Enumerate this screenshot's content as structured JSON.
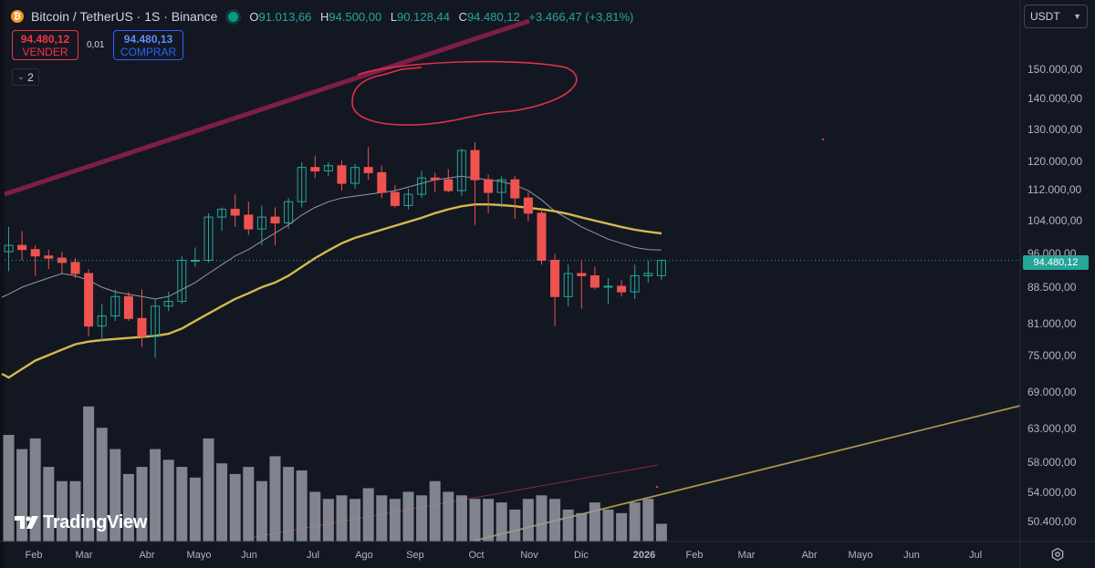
{
  "legend": {
    "symbol": "Bitcoin / TetherUS · 1S · Binance",
    "open_label": "O",
    "open": "91.013,66",
    "high_label": "H",
    "high": "94.500,00",
    "low_label": "L",
    "low": "90.128,44",
    "close_label": "C",
    "close": "94.480,12",
    "change": "+3.466,47 (+3,81%)"
  },
  "trade": {
    "sell_price": "94.480,12",
    "sell_label": "VENDER",
    "spread": "0,01",
    "buy_price": "94.480,13",
    "buy_label": "COMPRAR"
  },
  "indicators_toggle": "2",
  "currency": "USDT",
  "current_price_tag": "94.480,12",
  "logo_text": "TradingView",
  "colors": {
    "background": "#131722",
    "up": "#26a69a",
    "down": "#ef5350",
    "ma_slow": "#d4b94e",
    "ma_fast": "#9598a1",
    "volume": "#9598a1"
  },
  "chart_data": {
    "type": "candlestick",
    "interval": "1 week",
    "y_scale": "log",
    "y_ticks": [
      "150.000,00",
      "140.000,00",
      "130.000,00",
      "120.000,00",
      "112.000,00",
      "104.000,00",
      "96.000,00",
      "88.500,00",
      "81.000,00",
      "75.000,00",
      "69.000,00",
      "63.000,00",
      "58.000,00",
      "54.000,00",
      "50.400,00"
    ],
    "x_ticks": [
      "Feb",
      "Mar",
      "Abr",
      "Mayo",
      "Jun",
      "Jul",
      "Ago",
      "Sep",
      "Oct",
      "Nov",
      "Dic",
      "2026",
      "Feb",
      "Mar",
      "Abr",
      "Mayo",
      "Jun",
      "Jul"
    ],
    "candles": [
      {
        "o": 96500,
        "h": 102500,
        "l": 92000,
        "c": 98000
      },
      {
        "o": 98000,
        "h": 101500,
        "l": 94500,
        "c": 97000
      },
      {
        "o": 97000,
        "h": 98000,
        "l": 91000,
        "c": 95500
      },
      {
        "o": 95500,
        "h": 97000,
        "l": 92500,
        "c": 95000
      },
      {
        "o": 95000,
        "h": 96500,
        "l": 91500,
        "c": 94000
      },
      {
        "o": 94000,
        "h": 95000,
        "l": 90500,
        "c": 91500
      },
      {
        "o": 91500,
        "h": 92500,
        "l": 78500,
        "c": 80500
      },
      {
        "o": 80500,
        "h": 85000,
        "l": 77500,
        "c": 82500
      },
      {
        "o": 82500,
        "h": 88000,
        "l": 81500,
        "c": 86500
      },
      {
        "o": 86500,
        "h": 87500,
        "l": 81500,
        "c": 82000
      },
      {
        "o": 82000,
        "h": 88000,
        "l": 76500,
        "c": 78500
      },
      {
        "o": 78500,
        "h": 86000,
        "l": 74500,
        "c": 84500
      },
      {
        "o": 84500,
        "h": 87500,
        "l": 83500,
        "c": 85500
      },
      {
        "o": 85500,
        "h": 95500,
        "l": 85000,
        "c": 94500
      },
      {
        "o": 94500,
        "h": 97500,
        "l": 93000,
        "c": 94500
      },
      {
        "o": 94500,
        "h": 106000,
        "l": 94000,
        "c": 105000
      },
      {
        "o": 105000,
        "h": 107500,
        "l": 101500,
        "c": 107000
      },
      {
        "o": 107000,
        "h": 111000,
        "l": 102500,
        "c": 105500
      },
      {
        "o": 105500,
        "h": 109000,
        "l": 100500,
        "c": 102000
      },
      {
        "o": 102000,
        "h": 108000,
        "l": 98000,
        "c": 105000
      },
      {
        "o": 105000,
        "h": 107500,
        "l": 98000,
        "c": 103500
      },
      {
        "o": 103500,
        "h": 110000,
        "l": 102000,
        "c": 109000
      },
      {
        "o": 109000,
        "h": 120000,
        "l": 107500,
        "c": 118500
      },
      {
        "o": 118500,
        "h": 122000,
        "l": 115500,
        "c": 117500
      },
      {
        "o": 117500,
        "h": 120000,
        "l": 116000,
        "c": 119000
      },
      {
        "o": 119000,
        "h": 120500,
        "l": 112000,
        "c": 114000
      },
      {
        "o": 114000,
        "h": 119500,
        "l": 112500,
        "c": 118500
      },
      {
        "o": 118500,
        "h": 124500,
        "l": 115000,
        "c": 117000
      },
      {
        "o": 117000,
        "h": 119000,
        "l": 110000,
        "c": 111500
      },
      {
        "o": 111500,
        "h": 113500,
        "l": 107500,
        "c": 108000
      },
      {
        "o": 108000,
        "h": 112500,
        "l": 107000,
        "c": 111000
      },
      {
        "o": 111000,
        "h": 117500,
        "l": 110000,
        "c": 115500
      },
      {
        "o": 115500,
        "h": 117000,
        "l": 111500,
        "c": 115000
      },
      {
        "o": 115000,
        "h": 118000,
        "l": 111500,
        "c": 112000
      },
      {
        "o": 112000,
        "h": 124000,
        "l": 110500,
        "c": 123500
      },
      {
        "o": 123500,
        "h": 126000,
        "l": 103000,
        "c": 115000
      },
      {
        "o": 115000,
        "h": 116500,
        "l": 106000,
        "c": 111500
      },
      {
        "o": 111500,
        "h": 116000,
        "l": 107500,
        "c": 115000
      },
      {
        "o": 115000,
        "h": 116000,
        "l": 104500,
        "c": 110000
      },
      {
        "o": 110000,
        "h": 111500,
        "l": 104000,
        "c": 106000
      },
      {
        "o": 106000,
        "h": 107000,
        "l": 93500,
        "c": 94500
      },
      {
        "o": 94500,
        "h": 96000,
        "l": 80500,
        "c": 86500
      },
      {
        "o": 86500,
        "h": 93500,
        "l": 84500,
        "c": 91500
      },
      {
        "o": 91500,
        "h": 94500,
        "l": 84000,
        "c": 91000
      },
      {
        "o": 91000,
        "h": 93000,
        "l": 88000,
        "c": 88500
      },
      {
        "o": 88500,
        "h": 90500,
        "l": 85000,
        "c": 88700
      },
      {
        "o": 88700,
        "h": 90000,
        "l": 86500,
        "c": 87500
      },
      {
        "o": 87500,
        "h": 93500,
        "l": 86000,
        "c": 91000
      },
      {
        "o": 91000,
        "h": 94500,
        "l": 89500,
        "c": 91500
      },
      {
        "o": 91013.66,
        "h": 94500,
        "l": 90128.44,
        "c": 94480.12
      }
    ],
    "ma_fast": [
      87000,
      88500,
      89500,
      90500,
      91500,
      91000,
      90000,
      88500,
      87500,
      87000,
      86500,
      86000,
      86500,
      88000,
      89500,
      91500,
      93500,
      95500,
      97000,
      99000,
      101000,
      103000,
      105500,
      107500,
      109000,
      110000,
      110500,
      111000,
      111500,
      112000,
      113000,
      114000,
      115000,
      115500,
      116000,
      115500,
      115000,
      114500,
      113500,
      112000,
      109500,
      106500,
      104500,
      102500,
      101000,
      99500,
      98500,
      97500,
      97000,
      96900
    ],
    "ma_slow": [
      71000,
      72500,
      74000,
      75000,
      76000,
      77000,
      77500,
      77800,
      78000,
      78200,
      78400,
      78600,
      79000,
      80000,
      81500,
      83000,
      84500,
      86000,
      87200,
      88500,
      89500,
      91000,
      93000,
      95000,
      96800,
      98500,
      99800,
      100800,
      101800,
      102800,
      103800,
      104800,
      106000,
      107000,
      107800,
      108300,
      108300,
      108100,
      107800,
      107400,
      107000,
      106500,
      105800,
      104900,
      104100,
      103300,
      102500,
      101800,
      101300,
      100900
    ],
    "volume": [
      30,
      26,
      29,
      21,
      17,
      17,
      38,
      32,
      26,
      19,
      21,
      26,
      23,
      21,
      18,
      29,
      22,
      19,
      21,
      17,
      24,
      21,
      20,
      14,
      12,
      13,
      12,
      15,
      13,
      12,
      14,
      13,
      17,
      14,
      13,
      12,
      12,
      11,
      9,
      12,
      13,
      12,
      9,
      8,
      11,
      9,
      8,
      11,
      12,
      5
    ]
  }
}
